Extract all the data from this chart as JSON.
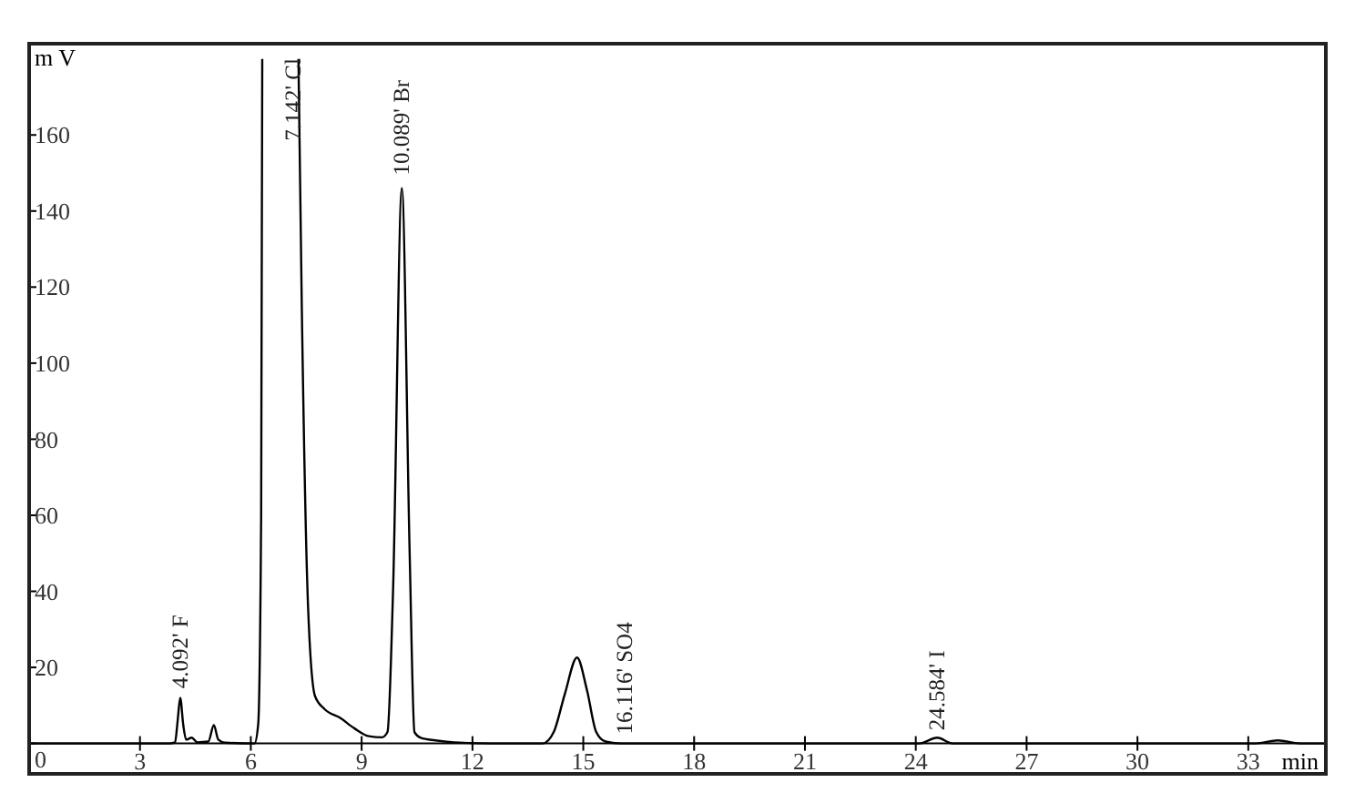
{
  "chart_data": {
    "type": "line",
    "xlabel": "min",
    "ylabel": "m V",
    "xlim": [
      0,
      35.1
    ],
    "ylim": [
      -8,
      184
    ],
    "xticks": [
      3,
      6,
      9,
      12,
      15,
      18,
      21,
      24,
      27,
      30,
      33
    ],
    "yticks": [
      0,
      20,
      40,
      60,
      80,
      100,
      120,
      140,
      160
    ],
    "marker": "none",
    "line_style": "solid",
    "series": [
      {
        "color": "#000000",
        "x": [
          0,
          3.8,
          3.95,
          4.02,
          4.09,
          4.17,
          4.25,
          4.4,
          4.55,
          4.85,
          5.0,
          5.12,
          5.3,
          6.1,
          6.2,
          6.28,
          6.31,
          6.8,
          7.29,
          7.38,
          7.55,
          7.74,
          8.0,
          8.42,
          8.8,
          9.2,
          9.55,
          9.7,
          9.85,
          10.089,
          10.3,
          10.43,
          10.6,
          11,
          11.5,
          12.5,
          13.9,
          14.2,
          14.5,
          14.83,
          15.1,
          15.35,
          15.6,
          16,
          24.1,
          24.58,
          25,
          33.2,
          33.8,
          34.4,
          35.1
        ],
        "values": [
          0,
          0,
          0.3,
          6,
          12,
          5,
          1,
          1.5,
          0.3,
          0.5,
          4.8,
          1,
          0.2,
          0,
          5,
          60,
          180,
          null,
          180,
          115,
          36,
          12.4,
          9,
          6.7,
          4,
          1.9,
          1.6,
          3,
          40,
          146,
          50,
          3,
          1.5,
          0.8,
          0.3,
          0,
          0,
          3,
          13,
          22.6,
          14,
          3,
          0.5,
          0,
          0,
          1.5,
          0,
          0,
          0.8,
          0,
          0
        ]
      }
    ],
    "annotations": [
      {
        "text": "4.092' F",
        "x": 4.092,
        "y": 13
      },
      {
        "text": "7.142' Cl",
        "x": 7.142,
        "y": 157
      },
      {
        "text": "10.089' Br",
        "x": 10.089,
        "y": 148
      },
      {
        "text": "16.116' SO4",
        "x": 16.116,
        "y": 1
      },
      {
        "text": "24.584' I",
        "x": 24.584,
        "y": 2
      }
    ]
  }
}
